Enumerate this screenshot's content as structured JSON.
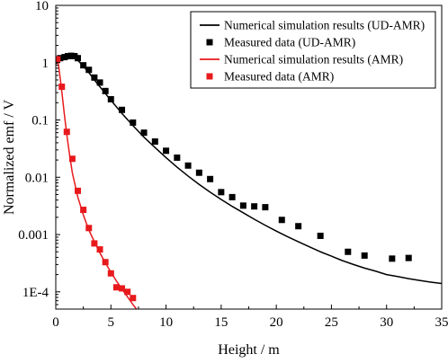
{
  "chart_data": {
    "type": "scatter",
    "xlabel": "Height / m",
    "ylabel": "Normalized emf / V",
    "xlim": [
      0,
      35
    ],
    "ylim": [
      5e-05,
      10
    ],
    "yscale": "log",
    "x_ticks": [
      0,
      5,
      10,
      15,
      20,
      25,
      30,
      35
    ],
    "x_tick_labels": [
      "0",
      "5",
      "10",
      "15",
      "20",
      "25",
      "30",
      "35"
    ],
    "y_ticks": [
      0.0001,
      0.001,
      0.01,
      0.1,
      1,
      10
    ],
    "y_tick_labels": [
      "1E-4",
      "0.001",
      "0.01",
      "0.1",
      "1",
      "10"
    ],
    "grid": false,
    "legend_position": "top-right",
    "series": [
      {
        "name": "Numerical simulation results (UD-AMR)",
        "kind": "line",
        "color": "#000000",
        "x": [
          0,
          0.25,
          0.5,
          0.75,
          1.0,
          1.25,
          1.5,
          1.75,
          2.0,
          2.5,
          3.0,
          3.5,
          4.0,
          4.5,
          5.0,
          5.5,
          6.0,
          7.0,
          8.0,
          9.0,
          10.0,
          11.0,
          12.0,
          13.0,
          14.0,
          15.0,
          16.0,
          17.0,
          18.0,
          19.0,
          20.0,
          21.0,
          22.0,
          23.0,
          24.0,
          25.0,
          26.0,
          27.0,
          28.0,
          29.0,
          30.0,
          31.0,
          32.0,
          33.0,
          34.0,
          35.0
        ],
        "y": [
          0.95,
          1.05,
          1.15,
          1.22,
          1.26,
          1.27,
          1.25,
          1.2,
          1.1,
          0.87,
          0.67,
          0.5,
          0.38,
          0.29,
          0.22,
          0.17,
          0.13,
          0.08,
          0.05,
          0.033,
          0.022,
          0.015,
          0.0105,
          0.0075,
          0.0055,
          0.0041,
          0.0031,
          0.0024,
          0.00185,
          0.00145,
          0.00115,
          0.00092,
          0.00075,
          0.00061,
          0.0005,
          0.00042,
          0.00035,
          0.0003,
          0.00026,
          0.00023,
          0.0002,
          0.000185,
          0.00017,
          0.000158,
          0.000148,
          0.00014
        ]
      },
      {
        "name": "Measured data (UD-AMR)",
        "kind": "scatter",
        "color": "#000000",
        "x": [
          0.4,
          0.8,
          1.1,
          1.4,
          1.7,
          2.0,
          2.5,
          3.0,
          3.5,
          4.0,
          4.5,
          5.0,
          6.0,
          7.0,
          8.0,
          9.0,
          10.0,
          11.0,
          12.0,
          13.0,
          14.0,
          15.0,
          16.0,
          17.0,
          18.0,
          19.0,
          20.5,
          22.0,
          24.0,
          26.5,
          28.0,
          30.5,
          32.0
        ],
        "y": [
          1.2,
          1.25,
          1.3,
          1.32,
          1.3,
          1.2,
          0.9,
          0.75,
          0.55,
          0.45,
          0.32,
          0.23,
          0.15,
          0.09,
          0.06,
          0.042,
          0.029,
          0.022,
          0.016,
          0.012,
          0.0093,
          0.0055,
          0.0045,
          0.0032,
          0.0031,
          0.003,
          0.0018,
          0.0014,
          0.00095,
          0.0005,
          0.00043,
          0.00038,
          0.00039
        ]
      },
      {
        "name": "Numerical simulation results (AMR)",
        "kind": "line",
        "color": "#e8191c",
        "x": [
          0,
          0.25,
          0.5,
          0.75,
          1.0,
          1.25,
          1.5,
          2.0,
          2.5,
          3.0,
          3.5,
          4.0,
          4.5,
          5.0,
          5.5,
          6.0,
          6.5,
          7.0,
          7.5
        ],
        "y": [
          1.3,
          0.9,
          0.38,
          0.14,
          0.055,
          0.025,
          0.012,
          0.0045,
          0.0022,
          0.0012,
          0.00075,
          0.00048,
          0.00032,
          0.00022,
          0.000155,
          0.000112,
          8.2e-05,
          6e-05,
          4.5e-05
        ]
      },
      {
        "name": "Measured data (AMR)",
        "kind": "scatter",
        "color": "#e8191c",
        "x": [
          0.15,
          0.55,
          1.0,
          1.5,
          2.0,
          2.5,
          3.0,
          3.5,
          4.0,
          4.5,
          5.0,
          5.5,
          6.0,
          6.5,
          7.0
        ],
        "y": [
          1.15,
          0.38,
          0.062,
          0.021,
          0.0058,
          0.0027,
          0.0013,
          0.0007,
          0.00055,
          0.00033,
          0.00021,
          0.00012,
          0.000115,
          0.0001,
          7.8e-05
        ]
      }
    ]
  }
}
